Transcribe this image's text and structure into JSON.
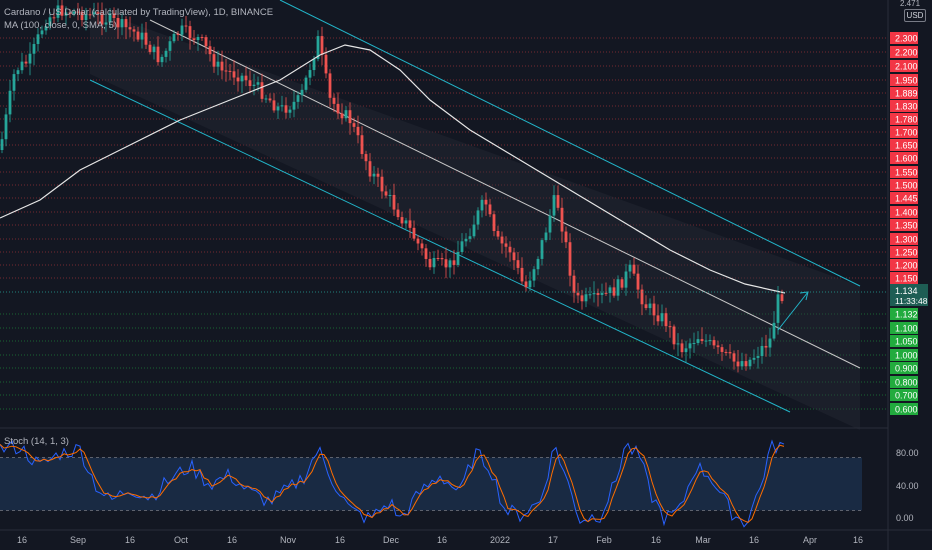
{
  "header": {
    "title": "Cardano / US Dollar (calculated by TradingView), 1D, BINANCE",
    "indicator": "MA (100, close, 0, SMA, 5)",
    "currency": "USD",
    "top_price": "2.471"
  },
  "stoch": {
    "label": "Stoch (14, 1, 3)",
    "axis_labels": [
      "80.00",
      "40.00",
      "0.00"
    ]
  },
  "x_axis": {
    "labels": [
      "16",
      "Sep",
      "16",
      "Oct",
      "16",
      "Nov",
      "16",
      "Dec",
      "16",
      "2022",
      "17",
      "Feb",
      "16",
      "Mar",
      "16",
      "Apr",
      "16"
    ]
  },
  "price_axis": {
    "red": [
      "2.300",
      "2.200",
      "2.100",
      "1.950",
      "1.889",
      "1.830",
      "1.780",
      "1.700",
      "1.650",
      "1.600",
      "1.550",
      "1.500",
      "1.445",
      "1.400",
      "1.350",
      "1.300",
      "1.250",
      "1.200",
      "1.150"
    ],
    "current": "1.134",
    "countdown": "11:33:48",
    "green": [
      "1.132",
      "1.100",
      "1.050",
      "1.000",
      "0.900",
      "0.800",
      "0.700",
      "0.600"
    ]
  },
  "colors": {
    "bull": "#26a69a",
    "bear": "#ef5350",
    "ma": "#e6e6e6",
    "channel": "#22b5c9",
    "stoch_k": "#2962ff",
    "stoch_d": "#ff6d00",
    "red_badge": "#f23645",
    "green_badge": "#22ab3e"
  },
  "chart_data": {
    "type": "candlestick",
    "stoch_bands": [
      80,
      20
    ],
    "stoch_range": [
      0,
      100
    ]
  }
}
